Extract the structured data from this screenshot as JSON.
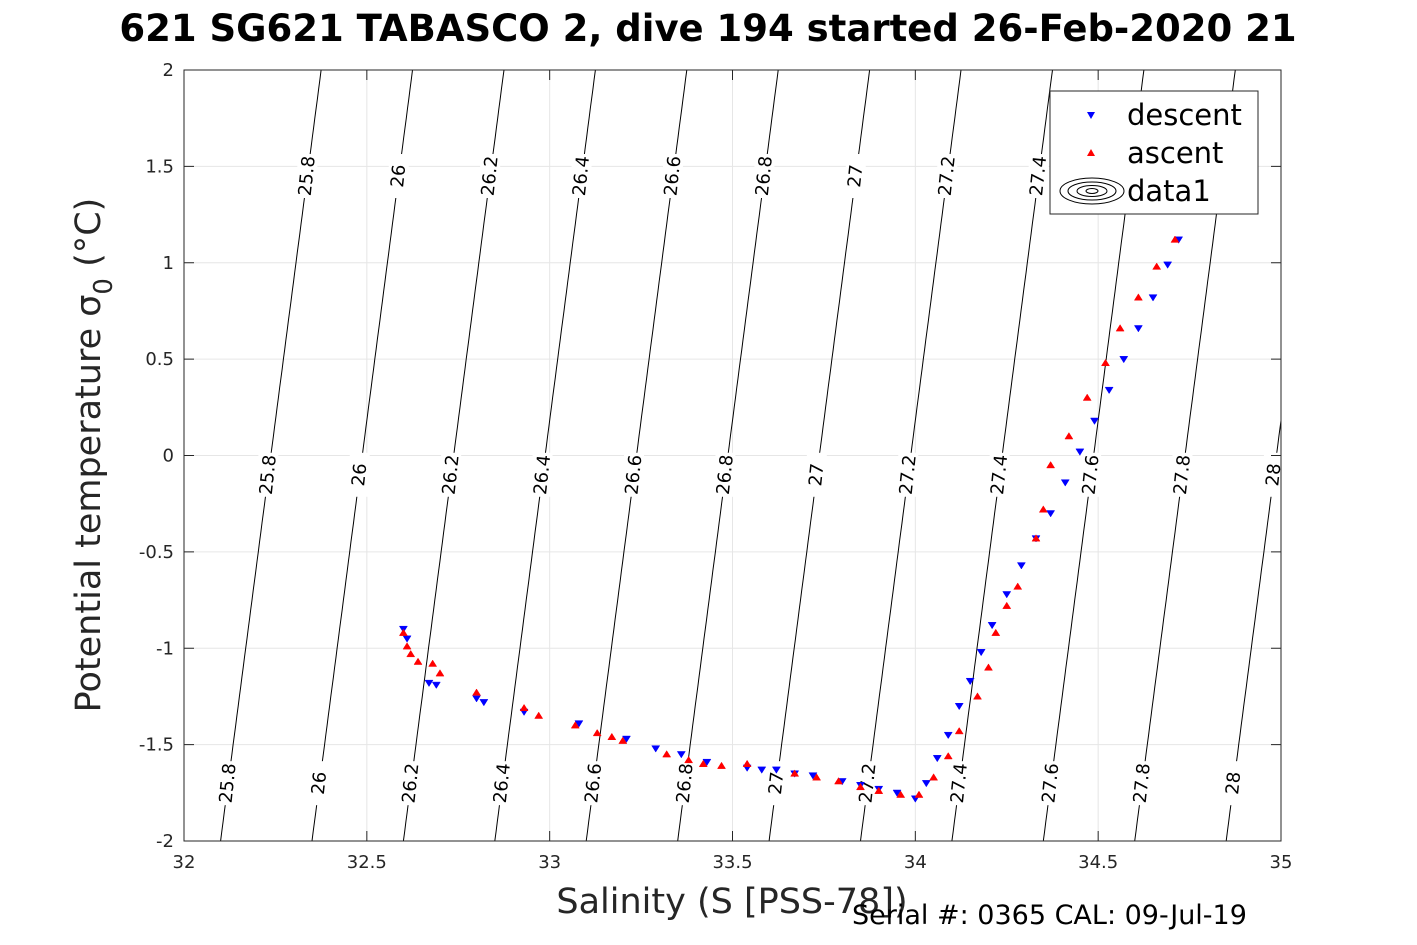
{
  "chart_data": {
    "type": "scatter",
    "title": "621 SG621 TABASCO 2, dive 194 started 26-Feb-2020 21",
    "xlabel": "Salinity (S [PSS-78])",
    "ylabel": "Potential temperature σ0 (°C)",
    "xlim": [
      32,
      35
    ],
    "ylim": [
      -2,
      2
    ],
    "xticks": [
      32,
      32.5,
      33,
      33.5,
      34,
      34.5,
      35
    ],
    "yticks": [
      -2,
      -1.5,
      -1,
      -0.5,
      0,
      0.5,
      1,
      1.5,
      2
    ],
    "xtick_labels": [
      "32",
      "32.5",
      "33",
      "33.5",
      "34",
      "34.5",
      "35"
    ],
    "ytick_labels": [
      "-2",
      "-1.5",
      "-1",
      "-0.5",
      "0",
      "0.5",
      "1",
      "1.5",
      "2"
    ],
    "grid": true,
    "legend_position": "top-right",
    "legend": [
      "descent",
      "ascent",
      "data1"
    ],
    "contour_levels": [
      25.8,
      26,
      26.2,
      26.4,
      26.6,
      26.8,
      27,
      27.2,
      27.4,
      27.6,
      27.8,
      28
    ],
    "contour_labels": [
      "25.8",
      "26",
      "26.2",
      "26.4",
      "26.6",
      "26.8",
      "27",
      "27.2",
      "27.4",
      "27.6",
      "27.8",
      "28"
    ],
    "series": [
      {
        "name": "descent",
        "color": "#0000ff",
        "marker": "triangle-down",
        "points": [
          [
            32.6,
            -0.9
          ],
          [
            32.61,
            -0.95
          ],
          [
            32.67,
            -1.18
          ],
          [
            32.69,
            -1.19
          ],
          [
            32.8,
            -1.26
          ],
          [
            32.82,
            -1.28
          ],
          [
            32.93,
            -1.33
          ],
          [
            33.08,
            -1.39
          ],
          [
            33.21,
            -1.47
          ],
          [
            33.29,
            -1.52
          ],
          [
            33.36,
            -1.55
          ],
          [
            33.43,
            -1.59
          ],
          [
            33.54,
            -1.62
          ],
          [
            33.58,
            -1.63
          ],
          [
            33.62,
            -1.63
          ],
          [
            33.67,
            -1.65
          ],
          [
            33.72,
            -1.66
          ],
          [
            33.8,
            -1.69
          ],
          [
            33.85,
            -1.71
          ],
          [
            33.9,
            -1.73
          ],
          [
            33.95,
            -1.75
          ],
          [
            34.0,
            -1.78
          ],
          [
            34.03,
            -1.7
          ],
          [
            34.06,
            -1.57
          ],
          [
            34.09,
            -1.45
          ],
          [
            34.12,
            -1.3
          ],
          [
            34.15,
            -1.17
          ],
          [
            34.18,
            -1.02
          ],
          [
            34.21,
            -0.88
          ],
          [
            34.25,
            -0.72
          ],
          [
            34.29,
            -0.57
          ],
          [
            34.33,
            -0.43
          ],
          [
            34.37,
            -0.3
          ],
          [
            34.41,
            -0.14
          ],
          [
            34.45,
            0.02
          ],
          [
            34.49,
            0.18
          ],
          [
            34.53,
            0.34
          ],
          [
            34.57,
            0.5
          ],
          [
            34.61,
            0.66
          ],
          [
            34.65,
            0.82
          ],
          [
            34.69,
            0.99
          ],
          [
            34.72,
            1.12
          ]
        ]
      },
      {
        "name": "ascent",
        "color": "#ff0000",
        "marker": "triangle-up",
        "points": [
          [
            32.6,
            -0.92
          ],
          [
            32.61,
            -0.99
          ],
          [
            32.62,
            -1.03
          ],
          [
            32.64,
            -1.07
          ],
          [
            32.68,
            -1.08
          ],
          [
            32.7,
            -1.13
          ],
          [
            32.8,
            -1.23
          ],
          [
            32.93,
            -1.31
          ],
          [
            32.97,
            -1.35
          ],
          [
            33.07,
            -1.4
          ],
          [
            33.13,
            -1.44
          ],
          [
            33.17,
            -1.46
          ],
          [
            33.2,
            -1.48
          ],
          [
            33.32,
            -1.55
          ],
          [
            33.38,
            -1.58
          ],
          [
            33.42,
            -1.6
          ],
          [
            33.47,
            -1.61
          ],
          [
            33.54,
            -1.6
          ],
          [
            33.67,
            -1.65
          ],
          [
            33.73,
            -1.67
          ],
          [
            33.79,
            -1.69
          ],
          [
            33.85,
            -1.72
          ],
          [
            33.9,
            -1.74
          ],
          [
            33.96,
            -1.76
          ],
          [
            34.01,
            -1.76
          ],
          [
            34.05,
            -1.67
          ],
          [
            34.09,
            -1.56
          ],
          [
            34.12,
            -1.43
          ],
          [
            34.17,
            -1.25
          ],
          [
            34.2,
            -1.1
          ],
          [
            34.22,
            -0.92
          ],
          [
            34.25,
            -0.78
          ],
          [
            34.28,
            -0.68
          ],
          [
            34.33,
            -0.43
          ],
          [
            34.35,
            -0.28
          ],
          [
            34.37,
            -0.05
          ],
          [
            34.42,
            0.1
          ],
          [
            34.47,
            0.3
          ],
          [
            34.52,
            0.48
          ],
          [
            34.56,
            0.66
          ],
          [
            34.61,
            0.82
          ],
          [
            34.66,
            0.98
          ],
          [
            34.71,
            1.12
          ]
        ]
      }
    ],
    "legend_glyph_color": "#000000"
  },
  "footer": {
    "serial_text": "Serial #: 0365  CAL: 09-Jul-19"
  },
  "colors": {
    "descent": "#0000ff",
    "ascent": "#ff0000",
    "contour": "#000000",
    "grid": "#e6e6e6",
    "axis": "#262626"
  }
}
